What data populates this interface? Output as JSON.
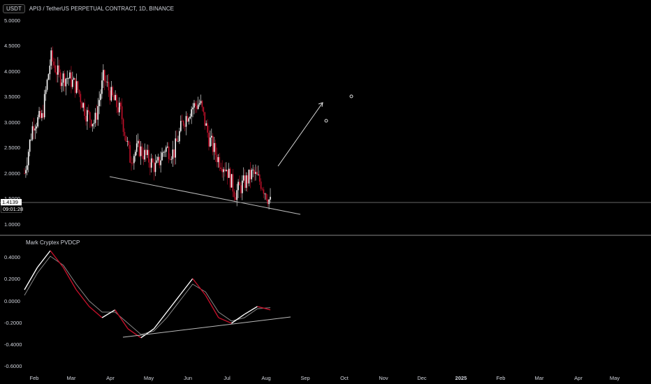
{
  "header": {
    "currency_button": "USDT",
    "symbol_title": "API3 / TetherUS PERPETUAL CONTRACT, 1D, BINANCE"
  },
  "price_axis": {
    "ticks": [
      "5.0000",
      "4.5000",
      "4.0000",
      "3.5000",
      "3.0000",
      "2.5000",
      "2.0000",
      "1.5000",
      "1.0000"
    ]
  },
  "last_price": {
    "value": "1.4139",
    "countdown": "09:01:28"
  },
  "indicator": {
    "name": "Mark Cryptex PVDCP",
    "ticks": [
      "0.4000",
      "0.2000",
      "0.0000",
      "-0.2000",
      "-0.4000",
      "-0.6000"
    ]
  },
  "time_axis": {
    "ticks": [
      "Feb",
      "Mar",
      "Apr",
      "May",
      "Jun",
      "Jul",
      "Aug",
      "Sep",
      "Oct",
      "Nov",
      "Dec",
      "2025",
      "Feb",
      "Mar",
      "Apr",
      "May"
    ]
  },
  "colors": {
    "background": "#000000",
    "up": "#ffffff",
    "down": "#c3102a",
    "line": "#bbbbbb",
    "indicator_fast": "#ffffff",
    "indicator_slow": "#888888"
  },
  "chart_data": [
    {
      "type": "candlestick",
      "title": "API3 / TetherUS PERPETUAL CONTRACT, 1D, BINANCE",
      "y_range": [
        0.8,
        5.1
      ],
      "x": [
        "2024-01-25",
        "2024-02-01",
        "2024-02-07",
        "2024-02-14",
        "2024-02-21",
        "2024-03-01",
        "2024-03-07",
        "2024-03-14",
        "2024-03-21",
        "2024-03-28",
        "2024-04-04",
        "2024-04-11",
        "2024-04-18",
        "2024-04-25",
        "2024-05-02",
        "2024-05-09",
        "2024-05-16",
        "2024-05-23",
        "2024-05-30",
        "2024-06-06",
        "2024-06-13",
        "2024-06-20",
        "2024-06-27",
        "2024-07-04",
        "2024-07-11",
        "2024-07-18",
        "2024-07-25",
        "2024-08-01",
        "2024-08-05"
      ],
      "close": [
        2.0,
        3.0,
        3.1,
        4.3,
        3.9,
        3.9,
        3.7,
        3.2,
        3.0,
        3.9,
        3.5,
        3.2,
        2.3,
        2.5,
        2.3,
        2.1,
        2.5,
        2.4,
        3.0,
        3.3,
        3.4,
        2.7,
        2.3,
        2.1,
        1.6,
        1.8,
        2.0,
        1.8,
        1.41
      ],
      "drawings": [
        {
          "type": "trendline",
          "from": [
            "2024-04-01",
            1.95
          ],
          "to": [
            "2024-08-31",
            1.18
          ]
        },
        {
          "type": "arrow",
          "from": [
            "2024-08-15",
            2.1
          ],
          "to": [
            "2024-09-20",
            3.4
          ]
        },
        {
          "type": "horizontal_line",
          "y": 1.4139
        }
      ]
    },
    {
      "type": "line",
      "title": "Mark Cryptex PVDCP",
      "y_range": [
        -0.65,
        0.55
      ],
      "series": [
        {
          "values": [
            0.1,
            0.3,
            0.45,
            0.3,
            0.1,
            -0.05,
            -0.15,
            -0.08,
            -0.25,
            -0.33,
            -0.25,
            -0.1,
            0.05,
            0.2,
            0.05,
            -0.15,
            -0.2,
            -0.12,
            -0.05,
            -0.08
          ]
        },
        {
          "values": [
            0.05,
            0.25,
            0.4,
            0.32,
            0.15,
            0.0,
            -0.1,
            -0.1,
            -0.2,
            -0.3,
            -0.27,
            -0.15,
            0.0,
            0.15,
            0.08,
            -0.1,
            -0.18,
            -0.15,
            -0.07,
            -0.06
          ]
        }
      ],
      "drawings": [
        {
          "type": "trendline",
          "from": [
            "2024-04-18",
            -0.34
          ],
          "to": [
            "2024-08-25",
            -0.15
          ]
        }
      ]
    }
  ]
}
